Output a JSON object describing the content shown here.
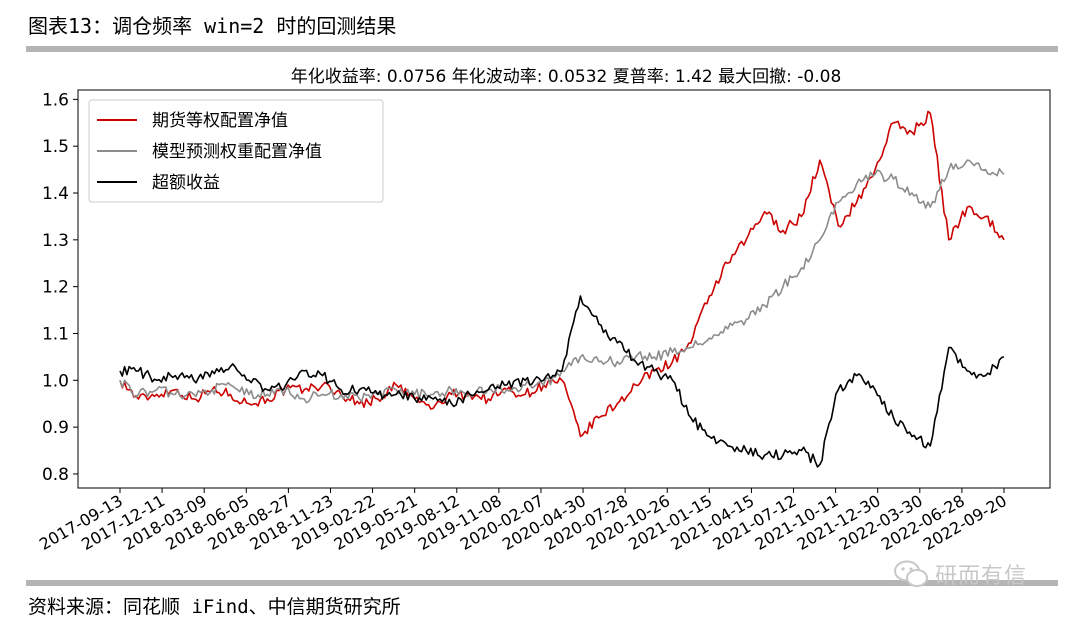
{
  "heading": "图表13：调仓频率 win=2 时的回测结果",
  "source": "资料来源：同花顺 iFind、中信期货研究所",
  "watermark": "研而有信",
  "colors": {
    "series_red": "#cc0000",
    "series_gray": "#8c8c8c",
    "series_black": "#000000",
    "rule": "#b5b5b5"
  },
  "chart_data": {
    "type": "line",
    "title": "年化收益率: 0.0756  年化波动率: 0.0532  夏普率: 1.42  最大回撤: -0.08",
    "ylim": [
      0.77,
      1.62
    ],
    "yticks": [
      0.8,
      0.9,
      1.0,
      1.1,
      1.2,
      1.3,
      1.4,
      1.5,
      1.6
    ],
    "xticks": [
      "2017-09-13",
      "2017-12-11",
      "2018-03-09",
      "2018-06-05",
      "2018-08-27",
      "2018-11-23",
      "2019-02-22",
      "2019-05-21",
      "2019-08-12",
      "2019-11-08",
      "2020-02-07",
      "2020-04-30",
      "2020-07-28",
      "2020-10-26",
      "2021-01-15",
      "2021-04-15",
      "2021-07-12",
      "2021-10-11",
      "2021-12-30",
      "2022-03-30",
      "2022-06-28",
      "2022-09-20"
    ],
    "legend_position": "top-left",
    "series": [
      {
        "name": "期货等权配置净值",
        "color": "#cc0000",
        "values": [
          1.0,
          0.96,
          0.97,
          0.98,
          0.96,
          0.98,
          0.97,
          0.95,
          0.96,
          0.98,
          0.98,
          0.99,
          0.97,
          0.95,
          0.96,
          0.99,
          0.96,
          0.94,
          0.97,
          0.97,
          0.96,
          0.98,
          0.97,
          0.99,
          1.0,
          0.88,
          0.92,
          0.95,
          0.99,
          1.02,
          1.04,
          1.08,
          1.18,
          1.25,
          1.3,
          1.36,
          1.32,
          1.35,
          1.47,
          1.33,
          1.38,
          1.45,
          1.55,
          1.53,
          1.57,
          1.3,
          1.37,
          1.35,
          1.3
        ]
      },
      {
        "name": "模型预测权重配置净值",
        "color": "#8c8c8c",
        "values": [
          1.0,
          0.97,
          0.98,
          0.97,
          0.97,
          0.98,
          0.99,
          0.97,
          0.97,
          0.98,
          0.96,
          0.97,
          0.97,
          0.96,
          0.97,
          0.98,
          0.97,
          0.97,
          0.98,
          0.97,
          0.98,
          0.98,
          0.99,
          0.99,
          1.02,
          1.05,
          1.04,
          1.04,
          1.05,
          1.05,
          1.06,
          1.07,
          1.09,
          1.11,
          1.13,
          1.16,
          1.2,
          1.24,
          1.3,
          1.38,
          1.42,
          1.44,
          1.43,
          1.4,
          1.37,
          1.45,
          1.47,
          1.45,
          1.44
        ]
      },
      {
        "name": "超额收益",
        "color": "#000000",
        "values": [
          1.02,
          1.02,
          1.0,
          1.01,
          1.0,
          1.02,
          1.03,
          1.0,
          0.98,
          0.99,
          1.02,
          1.01,
          0.98,
          0.98,
          0.97,
          0.97,
          0.96,
          0.96,
          0.95,
          0.97,
          0.98,
          0.99,
          1.0,
          1.0,
          1.02,
          1.18,
          1.12,
          1.08,
          1.04,
          1.02,
          1.0,
          0.92,
          0.88,
          0.86,
          0.85,
          0.84,
          0.84,
          0.85,
          0.82,
          0.98,
          1.01,
          0.98,
          0.92,
          0.88,
          0.86,
          1.07,
          1.02,
          1.01,
          1.05
        ]
      }
    ]
  }
}
